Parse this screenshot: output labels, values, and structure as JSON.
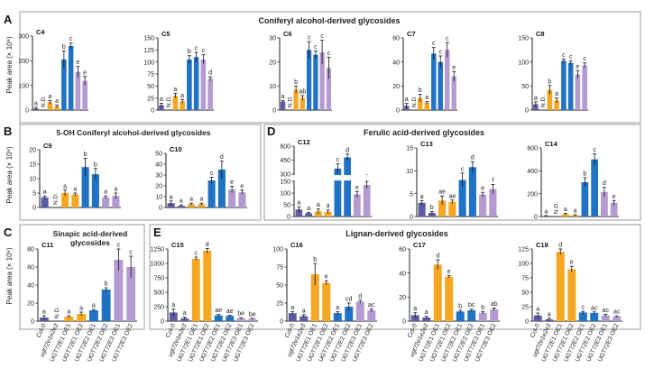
{
  "figure": {
    "panel_letters": [
      "A",
      "B",
      "C",
      "D",
      "E"
    ],
    "section_titles": {
      "A": "Coniferyl alcohol-derived glycosides",
      "B": "5-OH Coniferyl alcohol-derived glycosides",
      "C": "Sinapic acid-derived glycosides",
      "D": "Ferulic acid-derived glycosides",
      "E": "Lignan-derived glycosides"
    },
    "y_axis_label": "Peak area (× 10⁶)",
    "nd_label": "N.D.",
    "genotypes": [
      "Col-0",
      "ugt72e1e2e3",
      "UGT72E1 OE1",
      "UGT72E1 OE2",
      "UGT72E2 OE1",
      "UGT72E2 OE2",
      "UGT72E3 OE1",
      "UGT72E3 OE2"
    ]
  },
  "colors": {
    "col0": "#5d5ba3",
    "mutant": "#5d5ba3",
    "e1": "#f5a623",
    "e2": "#1f72c4",
    "e3": "#b39ad0",
    "frame": "#9a9a9a",
    "axis": "#222222",
    "break": "#ffffff"
  },
  "chart_data": [
    {
      "id": "C4",
      "section": "A",
      "type": "bar",
      "title": "C4",
      "ylim": [
        0,
        300
      ],
      "yticks": [
        0,
        100,
        200,
        300
      ],
      "values": [
        6,
        32,
        15,
        205,
        260,
        155,
        118
      ],
      "errors": [
        5,
        6,
        5,
        35,
        12,
        22,
        18
      ],
      "letters": [
        "a",
        "N.D.",
        "a",
        "a",
        "b",
        "c",
        "e",
        "e"
      ]
    },
    {
      "id": "C5",
      "section": "A",
      "type": "bar",
      "title": "C5",
      "ylim": [
        0,
        150
      ],
      "yticks": [
        0,
        25,
        50,
        75,
        100,
        125,
        150
      ],
      "values": [
        10,
        30,
        18,
        105,
        110,
        105,
        65
      ],
      "errors": [
        4,
        5,
        4,
        8,
        10,
        10,
        4
      ],
      "letters": [
        "a",
        "N.D.",
        "a",
        "a",
        "b",
        "c",
        "c",
        "d"
      ]
    },
    {
      "id": "C6",
      "section": "A",
      "type": "bar",
      "title": "C6",
      "ylim": [
        0,
        30
      ],
      "yticks": [
        0,
        10,
        20,
        30
      ],
      "values": [
        3.5,
        8.5,
        5,
        25,
        23,
        24,
        17.5
      ],
      "errors": [
        0.5,
        1.5,
        1,
        3.5,
        1.5,
        5,
        4.5
      ],
      "letters": [
        "a",
        "N.D.",
        "b",
        "ab",
        "c",
        "c",
        "c",
        "c"
      ]
    },
    {
      "id": "C7",
      "section": "A",
      "type": "bar",
      "title": "C7",
      "ylim": [
        0,
        60
      ],
      "yticks": [
        0,
        20,
        40,
        60
      ],
      "values": [
        3.5,
        10,
        6,
        47,
        40,
        50,
        28
      ],
      "errors": [
        2,
        3,
        1,
        5,
        5,
        6,
        4
      ],
      "letters": [
        "a",
        "N.D.",
        "b",
        "a",
        "c",
        "c",
        "c",
        "e"
      ]
    },
    {
      "id": "C8",
      "section": "A",
      "type": "bar",
      "title": "C8",
      "ylim": [
        0,
        150
      ],
      "yticks": [
        0,
        50,
        100,
        150
      ],
      "values": [
        12,
        42,
        20,
        102,
        98,
        74,
        93
      ],
      "errors": [
        5,
        9,
        5,
        4,
        4,
        8,
        5
      ],
      "letters": [
        "a",
        "N.D.",
        "b",
        "a",
        "c",
        "c",
        "e",
        "c"
      ]
    },
    {
      "id": "C9",
      "section": "B",
      "type": "bar",
      "title": "C9",
      "ylim": [
        0,
        20
      ],
      "yticks": [
        0,
        5,
        10,
        15,
        20
      ],
      "values": [
        3.5,
        5,
        4.5,
        14,
        11.5,
        3.5,
        4
      ],
      "errors": [
        0.5,
        1,
        0.5,
        3,
        2,
        0.5,
        1
      ],
      "letters": [
        "a",
        "N.D.",
        "a",
        "a",
        "b",
        "b",
        "a",
        "a"
      ]
    },
    {
      "id": "C10",
      "section": "B",
      "type": "bar",
      "title": "C10",
      "ylim": [
        0,
        50
      ],
      "yticks": [
        0,
        10,
        20,
        30,
        40,
        50
      ],
      "values": [
        4,
        1.5,
        3,
        3,
        25,
        35,
        16.5,
        14
      ],
      "errors": [
        2,
        1,
        1,
        1,
        3,
        8,
        3,
        2
      ],
      "letters": [
        "a",
        "a",
        "a",
        "a",
        "c",
        "d",
        "e",
        "e"
      ]
    },
    {
      "id": "C11",
      "section": "C",
      "type": "bar",
      "title": "C11",
      "ylim": [
        0,
        80
      ],
      "yticks": [
        0,
        20,
        40,
        60,
        80
      ],
      "values": [
        4,
        5,
        8,
        12,
        35,
        68,
        60
      ],
      "errors": [
        2,
        1,
        2,
        1,
        2,
        12,
        12
      ],
      "letters": [
        "a",
        "N.D.",
        "a",
        "a",
        "a",
        "b",
        "c",
        "c"
      ]
    },
    {
      "id": "C12",
      "section": "D",
      "type": "bar",
      "title": "C12",
      "broken_axis": true,
      "ylim": [
        0,
        600
      ],
      "yticks": [
        0,
        50,
        100,
        150,
        300,
        450,
        600
      ],
      "values": [
        30,
        14,
        22,
        20,
        360,
        480,
        95,
        135
      ],
      "errors": [
        12,
        4,
        10,
        8,
        50,
        35,
        12,
        15
      ],
      "letters": [
        "a",
        "a",
        "a",
        "a",
        "c",
        "d",
        "e",
        "f"
      ]
    },
    {
      "id": "C13",
      "section": "D",
      "type": "bar",
      "title": "C13",
      "ylim": [
        0,
        15
      ],
      "yticks": [
        0,
        5,
        10,
        15
      ],
      "values": [
        3,
        0.8,
        3.5,
        3.2,
        8,
        10.8,
        4.8,
        6
      ],
      "errors": [
        0.5,
        0.3,
        1,
        0.4,
        1.5,
        1.2,
        0.5,
        1
      ],
      "letters": [
        "a",
        "b",
        "ae",
        "ae",
        "c",
        "d",
        "e",
        "f"
      ]
    },
    {
      "id": "C14",
      "section": "D",
      "type": "bar",
      "title": "C14",
      "ylim": [
        0,
        600
      ],
      "yticks": [
        0,
        200,
        400,
        600
      ],
      "values": [
        5,
        20,
        10,
        300,
        500,
        215,
        120
      ],
      "errors": [
        3,
        8,
        5,
        40,
        50,
        40,
        20
      ],
      "letters": [
        "a",
        "N.D.",
        "a",
        "a",
        "b",
        "c",
        "d",
        "e"
      ]
    },
    {
      "id": "C15",
      "section": "E",
      "type": "bar",
      "title": "C15",
      "ylim": [
        0,
        1250
      ],
      "yticks": [
        0,
        250,
        500,
        750,
        1000,
        1250
      ],
      "values": [
        150,
        50,
        1080,
        1220,
        100,
        90,
        50,
        40
      ],
      "errors": [
        60,
        20,
        30,
        40,
        15,
        10,
        10,
        10
      ],
      "letters": [
        "a",
        "a",
        "c",
        "d",
        "ae",
        "ae",
        "be",
        "be"
      ]
    },
    {
      "id": "C16",
      "section": "E",
      "type": "bar",
      "title": "C16",
      "ylim": [
        0,
        100
      ],
      "yticks": [
        0,
        25,
        50,
        75,
        100
      ],
      "values": [
        11,
        7,
        65,
        53,
        11,
        20,
        27,
        15
      ],
      "errors": [
        2,
        2,
        15,
        3,
        2,
        5,
        2,
        2
      ],
      "letters": [
        "a",
        "a",
        "b",
        "e",
        "a",
        "cd",
        "d",
        "ac"
      ]
    },
    {
      "id": "C17",
      "section": "E",
      "type": "bar",
      "title": "C17",
      "ylim": [
        0,
        60
      ],
      "yticks": [
        0,
        20,
        40,
        60
      ],
      "values": [
        5,
        3,
        47,
        37,
        8,
        9,
        7,
        10
      ],
      "errors": [
        2,
        1,
        4,
        1,
        1,
        1,
        1,
        1
      ],
      "letters": [
        "a",
        "a",
        "d",
        "e",
        "b",
        "bc",
        "b",
        "ab"
      ]
    },
    {
      "id": "C18",
      "section": "E",
      "type": "bar",
      "title": "C18",
      "ylim": [
        0,
        125
      ],
      "yticks": [
        0,
        25,
        50,
        75,
        100,
        125
      ],
      "values": [
        10,
        3,
        120,
        90,
        15,
        14,
        10,
        8
      ],
      "errors": [
        4,
        2,
        5,
        5,
        2,
        2,
        2,
        1
      ],
      "letters": [
        "a",
        "a",
        "d",
        "e",
        "c",
        "ac",
        "ac",
        "ac"
      ]
    }
  ]
}
